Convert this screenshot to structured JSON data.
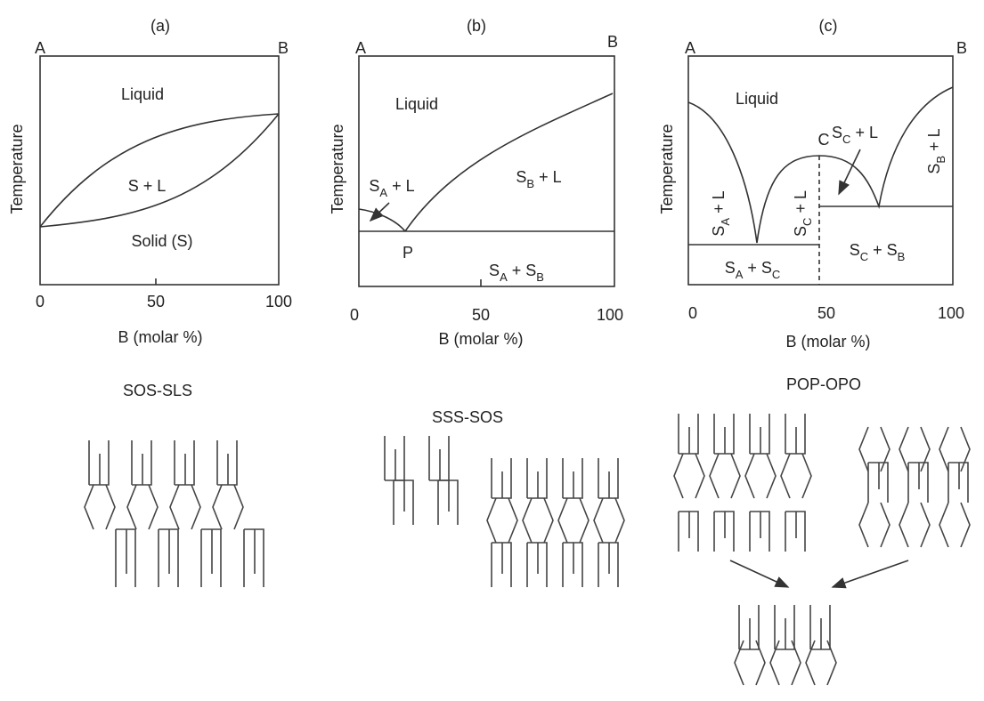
{
  "panels": [
    {
      "tag": "(a)",
      "corner_left": "A",
      "corner_right": "B",
      "y_label": "Temperature",
      "x_label": "B (molar %)",
      "x_ticks": [
        0,
        50,
        100
      ],
      "regions": [
        {
          "parts": [
            {
              "text": "Liquid"
            }
          ]
        },
        {
          "parts": [
            {
              "text": "S + L"
            }
          ]
        },
        {
          "parts": [
            {
              "text": "Solid (S)"
            }
          ]
        }
      ]
    },
    {
      "tag": "(b)",
      "corner_left": "A",
      "corner_right": "B",
      "y_label": "Temperature",
      "x_label": "B (molar %)",
      "x_ticks": [
        0,
        50,
        100
      ],
      "regions": [
        {
          "parts": [
            {
              "text": "Liquid"
            }
          ]
        },
        {
          "parts": [
            {
              "text": "S"
            },
            {
              "sub": "A"
            },
            {
              "text": " + L"
            }
          ]
        },
        {
          "parts": [
            {
              "text": "S"
            },
            {
              "sub": "B"
            },
            {
              "text": " + L"
            }
          ]
        },
        {
          "parts": [
            {
              "text": "P"
            }
          ]
        },
        {
          "parts": [
            {
              "text": "S"
            },
            {
              "sub": "A"
            },
            {
              "text": " + S"
            },
            {
              "sub": "B"
            }
          ]
        }
      ]
    },
    {
      "tag": "(c)",
      "corner_left": "A",
      "corner_right": "B",
      "y_label": "Temperature",
      "x_label": "B (molar %)",
      "x_ticks": [
        0,
        50,
        100
      ],
      "regions": [
        {
          "parts": [
            {
              "text": "Liquid"
            }
          ]
        },
        {
          "parts": [
            {
              "text": "S"
            },
            {
              "sub": "C"
            },
            {
              "text": " + L"
            }
          ]
        },
        {
          "parts": [
            {
              "text": "C"
            }
          ]
        },
        {
          "parts": [
            {
              "text": "S"
            },
            {
              "sub": "B"
            },
            {
              "text": " + L"
            }
          ]
        },
        {
          "parts": [
            {
              "text": "S"
            },
            {
              "sub": "A"
            },
            {
              "text": " + L"
            }
          ]
        },
        {
          "parts": [
            {
              "text": "S"
            },
            {
              "sub": "C"
            },
            {
              "text": " + L"
            }
          ]
        },
        {
          "parts": [
            {
              "text": "S"
            },
            {
              "sub": "C"
            },
            {
              "text": " + S"
            },
            {
              "sub": "B"
            }
          ]
        },
        {
          "parts": [
            {
              "text": "S"
            },
            {
              "sub": "A"
            },
            {
              "text": " + S"
            },
            {
              "sub": "C"
            }
          ]
        }
      ]
    }
  ],
  "structures": [
    {
      "title": "SOS-SLS"
    },
    {
      "title": "SSS-SOS"
    },
    {
      "title": "POP-OPO"
    }
  ]
}
